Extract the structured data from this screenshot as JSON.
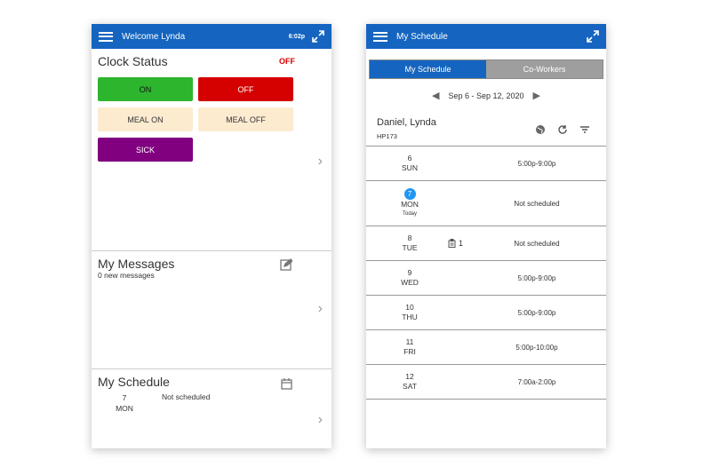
{
  "left": {
    "appbar": {
      "title": "Welcome Lynda",
      "extra": "6:02p"
    },
    "clock": {
      "title": "Clock Status",
      "state": "OFF",
      "buttons": {
        "on": "ON",
        "off": "OFF",
        "meal_on": "MEAL ON",
        "meal_off": "MEAL OFF",
        "sick": "SICK"
      }
    },
    "messages": {
      "title": "My Messages",
      "subtitle": "0 new messages"
    },
    "schedule": {
      "title": "My Schedule",
      "day_num": "7",
      "day_name": "MON",
      "status": "Not scheduled"
    }
  },
  "right": {
    "appbar": {
      "title": "My Schedule"
    },
    "tabs": [
      "My Schedule",
      "Co-Workers"
    ],
    "date_range": "Sep 6 - Sep 12, 2020",
    "employee": {
      "name": "Daniel, Lynda",
      "id": "HP173"
    },
    "days": [
      {
        "num": "6",
        "name": "SUN",
        "shift": "5:00p-9:00p"
      },
      {
        "num": "7",
        "name": "MON",
        "today": "Today",
        "shift": "Not scheduled"
      },
      {
        "num": "8",
        "name": "TUE",
        "note": "1",
        "shift": "Not scheduled"
      },
      {
        "num": "9",
        "name": "WED",
        "shift": "5:00p-9:00p"
      },
      {
        "num": "10",
        "name": "THU",
        "shift": "5:00p-9:00p"
      },
      {
        "num": "11",
        "name": "FRI",
        "shift": "5:00p-10:00p"
      },
      {
        "num": "12",
        "name": "SAT",
        "shift": "7:00a-2:00p"
      }
    ]
  },
  "colors": {
    "appbar": "#1565c0",
    "on": "#2eb52e",
    "off": "#d50000",
    "meal": "#fdebd0",
    "sick": "#800080",
    "today": "#2196f3"
  },
  "icons": [
    "menu-icon",
    "expand-icon",
    "chevron-right-icon",
    "edit-icon",
    "calendar-icon",
    "globe-icon",
    "refresh-icon",
    "filter-icon",
    "clipboard-icon",
    "chevron-left-icon"
  ]
}
